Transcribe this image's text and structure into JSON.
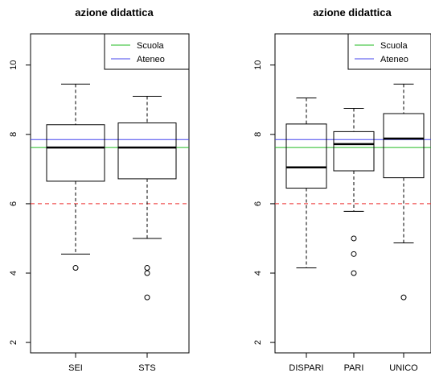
{
  "colors": {
    "scuola": "#22bb22",
    "ateneo": "#4444ee",
    "threshold": "#ee3333",
    "subtitle": "#3333cc"
  },
  "chart_data": [
    {
      "type": "boxplot",
      "title": "azione didattica",
      "ylim": [
        1.7,
        10.9
      ],
      "yticks": [
        "2",
        "4",
        "6",
        "8",
        "10"
      ],
      "categories": [
        "SEI",
        "STS"
      ],
      "boxes": [
        {
          "min": 4.55,
          "q1": 6.65,
          "median": 7.62,
          "q3": 8.28,
          "max": 9.45,
          "outliers": [
            4.15
          ]
        },
        {
          "min": 5.0,
          "q1": 6.72,
          "median": 7.62,
          "q3": 8.33,
          "max": 9.1,
          "outliers": [
            4.15,
            4.0,
            3.3
          ]
        }
      ],
      "reference_lines": [
        {
          "name": "Scuola",
          "value": 7.62
        },
        {
          "name": "Ateneo",
          "value": 7.85
        },
        {
          "value": 6.0
        }
      ],
      "legend": [
        "Scuola",
        "Ateneo"
      ],
      "legend_position": "top-right"
    },
    {
      "type": "boxplot",
      "title": "azione didattica",
      "ylim": [
        1.7,
        10.9
      ],
      "yticks": [
        "2",
        "4",
        "6",
        "8",
        "10"
      ],
      "categories": [
        "DISPARI",
        "PARI",
        "UNICO"
      ],
      "boxes": [
        {
          "min": 4.15,
          "q1": 6.45,
          "median": 7.05,
          "q3": 8.3,
          "max": 9.05,
          "outliers": []
        },
        {
          "min": 5.78,
          "q1": 6.95,
          "median": 7.72,
          "q3": 8.08,
          "max": 8.75,
          "outliers": [
            5.0,
            4.55,
            4.0
          ]
        },
        {
          "min": 4.87,
          "q1": 6.75,
          "median": 7.88,
          "q3": 8.6,
          "max": 9.45,
          "outliers": [
            3.3
          ]
        }
      ],
      "reference_lines": [
        {
          "name": "Scuola",
          "value": 7.62
        },
        {
          "name": "Ateneo",
          "value": 7.85
        },
        {
          "value": 6.0
        }
      ],
      "legend": [
        "Scuola",
        "Ateneo"
      ],
      "legend_position": "top-right"
    }
  ]
}
